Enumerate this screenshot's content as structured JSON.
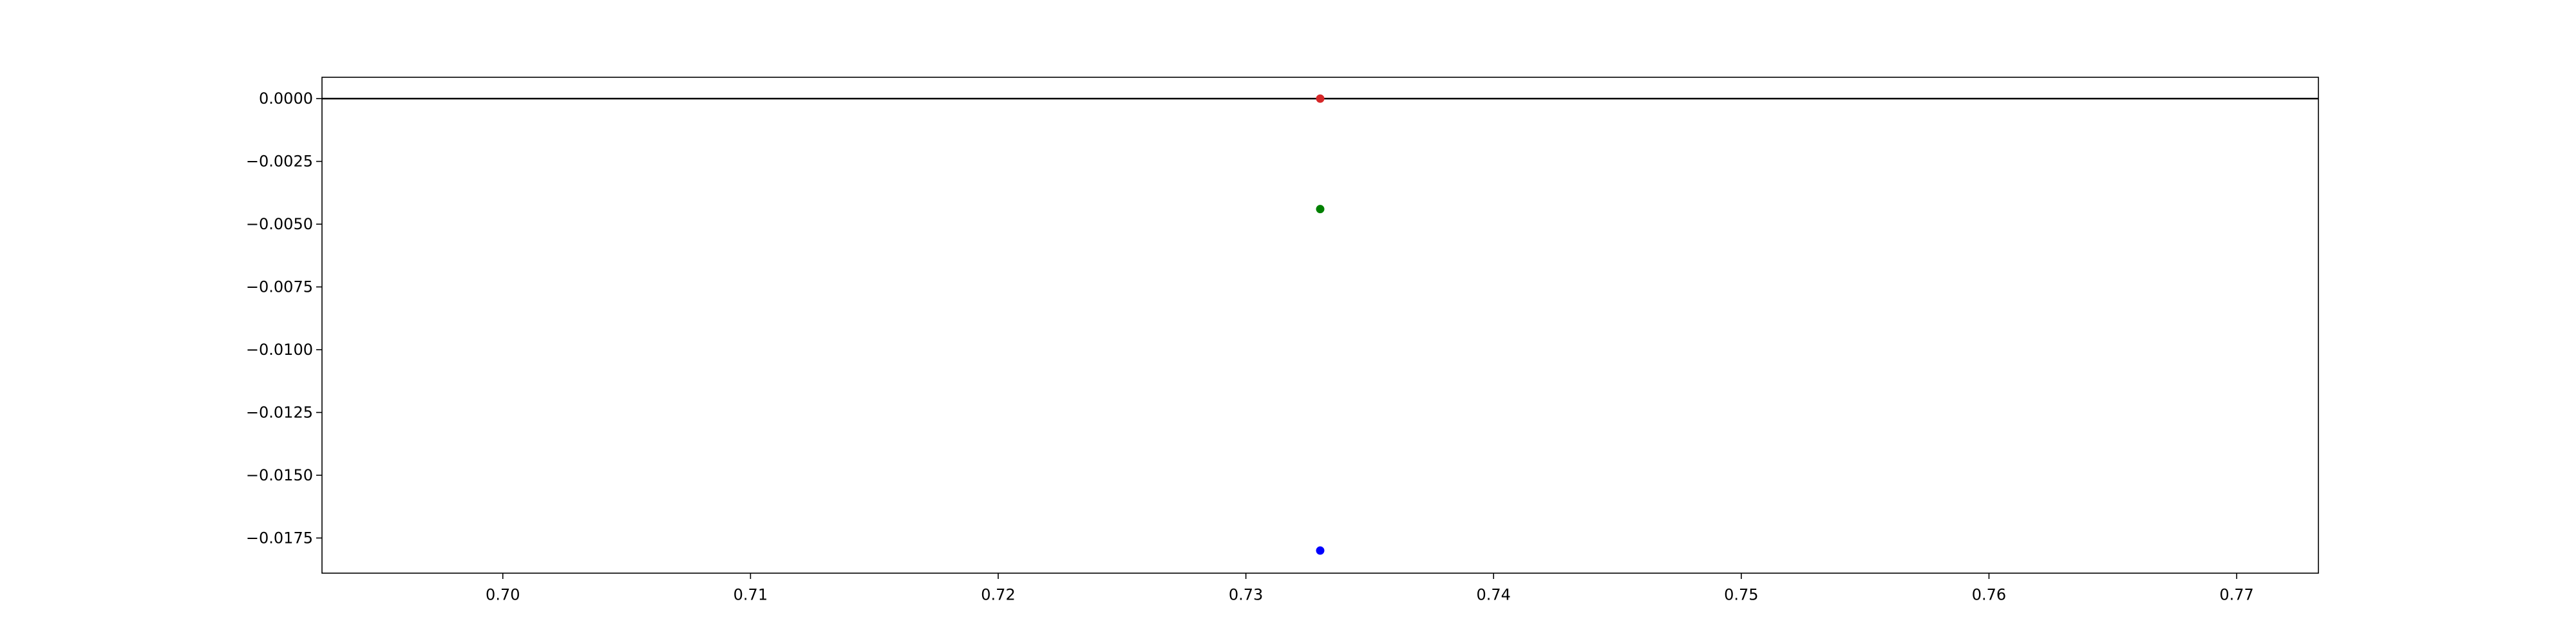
{
  "chart_data": {
    "type": "scatter",
    "title": "",
    "xlabel": "",
    "ylabel": "",
    "xlim": [
      0.6927,
      0.7733
    ],
    "ylim": [
      -0.0189,
      0.00085
    ],
    "xticks": [
      0.7,
      0.71,
      0.72,
      0.73,
      0.74,
      0.75,
      0.76,
      0.77
    ],
    "xtick_labels": [
      "0.70",
      "0.71",
      "0.72",
      "0.73",
      "0.74",
      "0.75",
      "0.76",
      "0.77"
    ],
    "yticks": [
      0.0,
      -0.0025,
      -0.005,
      -0.0075,
      -0.01,
      -0.0125,
      -0.015,
      -0.0175
    ],
    "ytick_labels": [
      "0.0000",
      "−0.0025",
      "−0.0050",
      "−0.0075",
      "−0.0100",
      "−0.0125",
      "−0.0150",
      "−0.0175"
    ],
    "grid": false,
    "reference_line": {
      "y": 0.0,
      "color": "#000000"
    },
    "points": [
      {
        "x": 0.733,
        "y": 0.0,
        "color": "#d62728"
      },
      {
        "x": 0.733,
        "y": -0.0044,
        "color": "#008000"
      },
      {
        "x": 0.733,
        "y": -0.018,
        "color": "#0000ff"
      }
    ]
  }
}
